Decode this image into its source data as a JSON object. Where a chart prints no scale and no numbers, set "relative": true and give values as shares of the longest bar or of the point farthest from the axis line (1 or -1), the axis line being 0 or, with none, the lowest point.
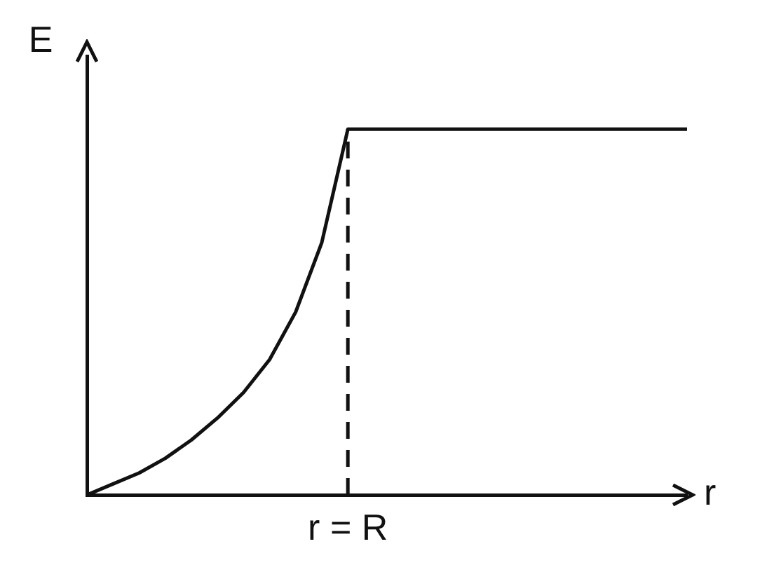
{
  "chart_data": {
    "type": "line",
    "relative": true,
    "xlabel": "r",
    "ylabel": "E",
    "categories": [
      null,
      null,
      null,
      null,
      null,
      null,
      null,
      null,
      null,
      null,
      null,
      null,
      null,
      null,
      null,
      null,
      null,
      null,
      null,
      null,
      null,
      null,
      null,
      null
    ],
    "series": [
      {
        "color": "#111111",
        "values": [
          0,
          0.03,
          0.06,
          0.1,
          0.15,
          0.21,
          0.28,
          0.37,
          0.5,
          0.69,
          1,
          1,
          1,
          1,
          1,
          1,
          1,
          1,
          1,
          1,
          1,
          1,
          1,
          1
        ]
      }
    ],
    "annotations": [
      "r = R"
    ],
    "marker": "none",
    "line_style": "solid",
    "grid": false,
    "legend": false
  }
}
